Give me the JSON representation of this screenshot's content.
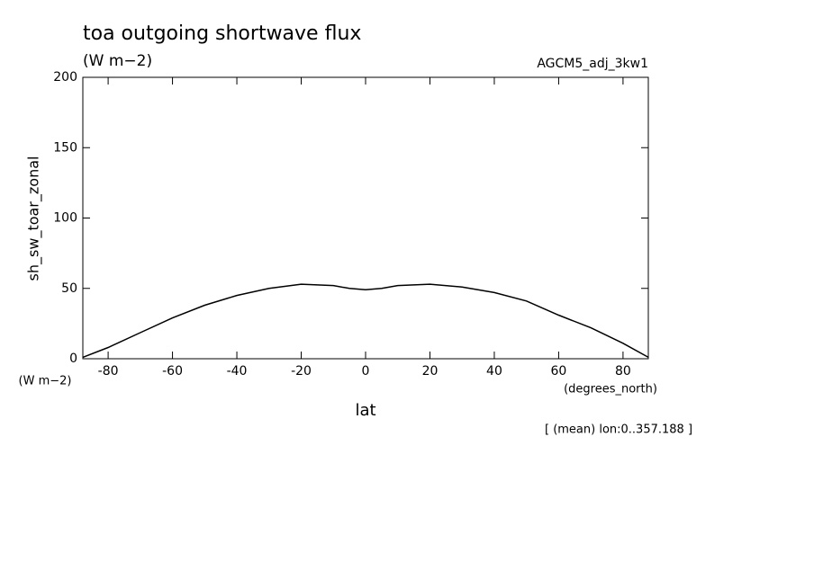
{
  "chart_data": {
    "type": "line",
    "title": "toa outgoing shortwave flux",
    "units": "(W m−2)",
    "dataset": "AGCM5_adj_3kw1",
    "ylabel": "sh_sw_toar_zonal",
    "yunits": "(W m−2)",
    "xunits": "(degrees_north)",
    "xlabel": "lat",
    "note": "[ (mean) lon:0..357.188 ]",
    "x": [
      -87.86,
      -80,
      -70,
      -60,
      -50,
      -40,
      -30,
      -20,
      -10,
      -5,
      0,
      5,
      10,
      20,
      30,
      40,
      50,
      60,
      70,
      80,
      87.86
    ],
    "values": [
      1,
      8,
      18.5,
      29,
      38,
      45,
      50,
      53,
      52,
      50,
      49,
      50,
      52,
      53,
      51,
      47,
      41,
      31,
      22,
      11,
      1
    ],
    "color": "#000000",
    "xlim": [
      -87.86,
      87.86
    ],
    "xticks": [
      -80,
      -60,
      -40,
      -20,
      0,
      20,
      40,
      60,
      80
    ],
    "ylim": [
      0,
      200
    ],
    "yticks": [
      0,
      50,
      100,
      150,
      200
    ]
  }
}
